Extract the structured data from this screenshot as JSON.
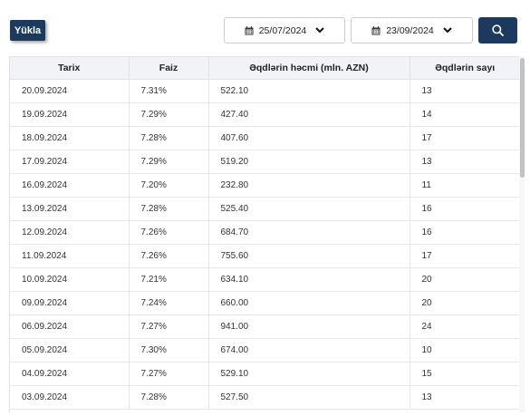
{
  "toolbar": {
    "download_label": "Yükla",
    "date_from": "25/07/2024",
    "date_to": "23/09/2024",
    "icons": {
      "calendar": "calendar-icon",
      "chevron": "chevron-down-icon",
      "search": "search-icon"
    },
    "accent_color": "#1c3a5e"
  },
  "table": {
    "headers": [
      "Tarix",
      "Faiz",
      "Əqdlərin həcmi (mln. AZN)",
      "Əqdlərin sayı"
    ],
    "rows": [
      [
        "20.09.2024",
        "7.31%",
        "522.10",
        "13"
      ],
      [
        "19.09.2024",
        "7.29%",
        "427.40",
        "14"
      ],
      [
        "18.09.2024",
        "7.28%",
        "407.60",
        "17"
      ],
      [
        "17.09.2024",
        "7.29%",
        "519.20",
        "13"
      ],
      [
        "16.09.2024",
        "7.20%",
        "232.80",
        "11"
      ],
      [
        "13.09.2024",
        "7.28%",
        "525.40",
        "16"
      ],
      [
        "12.09.2024",
        "7.26%",
        "684.70",
        "16"
      ],
      [
        "11.09.2024",
        "7.26%",
        "755.60",
        "17"
      ],
      [
        "10.09.2024",
        "7.21%",
        "634.10",
        "20"
      ],
      [
        "09.09.2024",
        "7.24%",
        "660.00",
        "20"
      ],
      [
        "06.09.2024",
        "7.27%",
        "941.00",
        "24"
      ],
      [
        "05.09.2024",
        "7.30%",
        "674.00",
        "10"
      ],
      [
        "04.09.2024",
        "7.27%",
        "529.10",
        "15"
      ],
      [
        "03.09.2024",
        "7.28%",
        "527.50",
        "13"
      ]
    ]
  }
}
